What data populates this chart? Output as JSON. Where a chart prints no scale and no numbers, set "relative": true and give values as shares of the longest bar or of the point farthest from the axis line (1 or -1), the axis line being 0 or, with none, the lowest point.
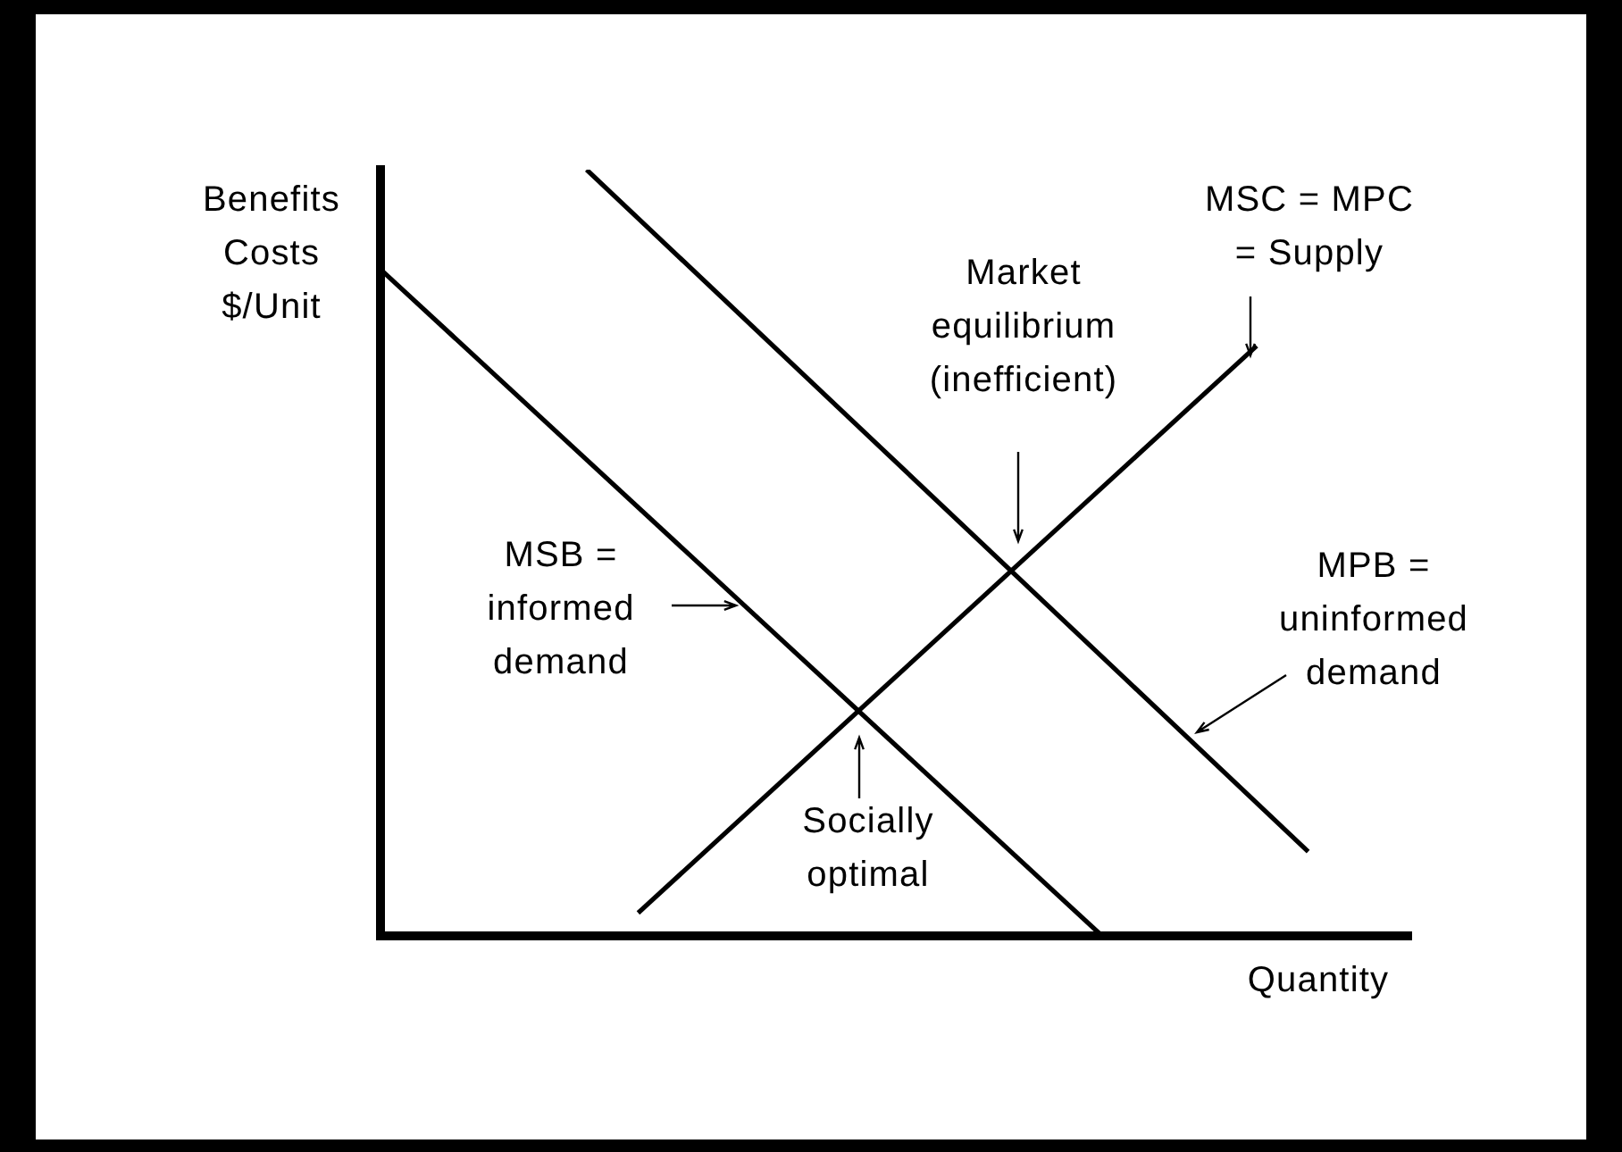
{
  "chart_data": {
    "type": "line",
    "relative": true,
    "xlabel": "Quantity",
    "ylabel": "Benefits\nCosts\n$/Unit",
    "categories": [
      null,
      null,
      null,
      null,
      null,
      null,
      null,
      null,
      null,
      null,
      null,
      null,
      null,
      null,
      null,
      null,
      null,
      null,
      null,
      null,
      null
    ],
    "series": [
      {
        "name": "MSB =\ninformed\ndemand",
        "color": "#000000",
        "values": [
          0.87,
          null,
          null,
          null,
          null,
          null,
          null,
          null,
          null,
          null,
          null,
          null,
          null,
          null,
          0,
          null,
          null,
          null,
          null,
          null,
          null
        ]
      },
      {
        "name": "MPB =\nuninformed\ndemand",
        "color": "#000000",
        "values": [
          null,
          null,
          null,
          null,
          1,
          null,
          null,
          null,
          null,
          null,
          null,
          null,
          null,
          null,
          null,
          null,
          null,
          null,
          0.11,
          null,
          null
        ]
      },
      {
        "name": "MSC = MPC\n= Supply",
        "color": "#000000",
        "values": [
          null,
          null,
          null,
          null,
          null,
          0.03,
          null,
          null,
          null,
          null,
          null,
          null,
          null,
          null,
          null,
          null,
          null,
          0.77,
          null,
          null,
          null
        ]
      }
    ],
    "annotations": [
      "Market\nequilibrium\n(inefficient)",
      "Socially\noptimal"
    ]
  }
}
